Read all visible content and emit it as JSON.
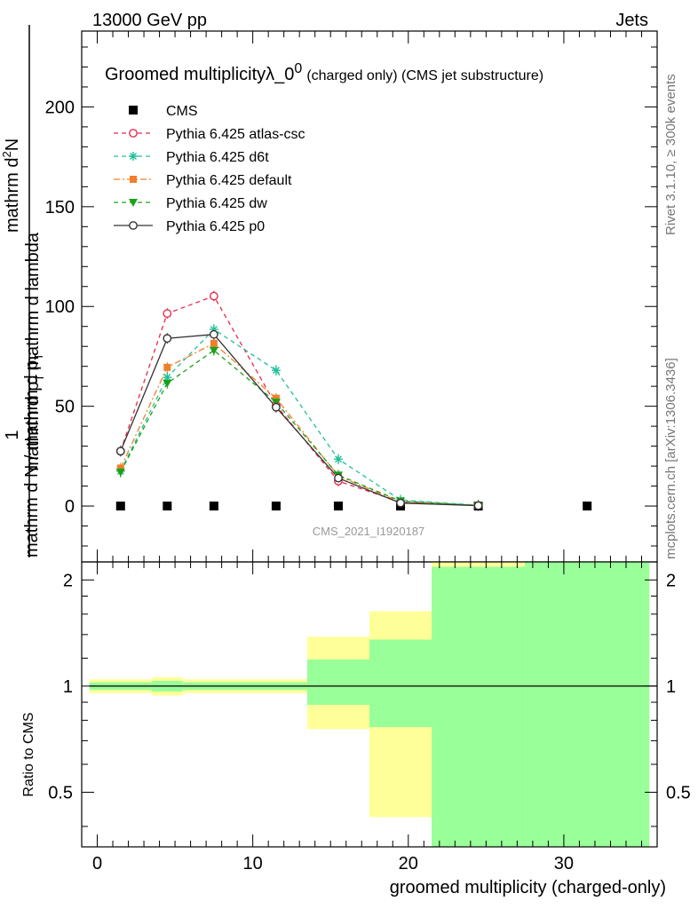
{
  "header": {
    "energy": "13000 GeV pp",
    "process": "Jets"
  },
  "side": {
    "rivet": "Rivet 3.1.10, ≥ 300k events",
    "mcplots": "mcplots.cern.ch [arXiv:1306.3436]"
  },
  "chart_data": [
    {
      "type": "line",
      "title": "Groomed multiplicityλ_0⁰",
      "title_main": "Groomed multiplicityλ_0",
      "title_sup": "0",
      "title_tail": "(charged only) (CMS jet substructure)",
      "ylabel_numerator": "mathrm d²N",
      "ylabel_numerator_main": "mathrm d",
      "ylabel_numerator_sup": "2",
      "ylabel_numerator_tail": "N",
      "ylabel_one": "1",
      "ylabel_denominator_main": "mathrm d p",
      "ylabel_denominator_sub": "T",
      "ylabel_denominator_tail": "mathrm d lambda",
      "ylabel_bottom": "mathrm d N / mathrm d p",
      "ylabel_bottom_sub": "T",
      "xlim": [
        -1,
        36
      ],
      "ylim": [
        -28,
        238
      ],
      "yticks": [
        0,
        50,
        100,
        150,
        200
      ],
      "xticks": [
        0,
        10,
        20,
        30
      ],
      "watermark": "CMS_2021_I1920187",
      "legend_position": "top-left",
      "series": [
        {
          "name": "CMS",
          "color": "#000000",
          "marker": "square",
          "x": [
            1.5,
            4.5,
            7.5,
            11.5,
            15.5,
            19.5,
            24.5,
            31.5
          ],
          "y": [
            0,
            0,
            0,
            0,
            0,
            0,
            0,
            0
          ]
        },
        {
          "name": "Pythia 6.425 atlas-csc",
          "color": "#e8294a",
          "marker": "open-circle",
          "dash": "5,4",
          "x": [
            1.5,
            4.5,
            7.5,
            11.5,
            15.5,
            19.5,
            24.5
          ],
          "y": [
            27.5,
            96.5,
            105.2,
            50.5,
            12.5,
            2.0,
            0.3
          ]
        },
        {
          "name": "Pythia 6.425 d6t",
          "color": "#20c09a",
          "marker": "star",
          "dash": "5,4",
          "x": [
            1.5,
            4.5,
            7.5,
            11.5,
            15.5,
            19.5,
            24.5
          ],
          "y": [
            17.5,
            64.5,
            88.5,
            68.0,
            23.5,
            3.0,
            0.4
          ]
        },
        {
          "name": "Pythia 6.425 default",
          "color": "#f07f2a",
          "marker": "filled-square",
          "dash": "7,3,2,3",
          "x": [
            1.5,
            4.5,
            7.5,
            11.5,
            15.5,
            19.5,
            24.5
          ],
          "y": [
            19.0,
            69.5,
            81.5,
            54.0,
            15.0,
            2.0,
            0.3
          ]
        },
        {
          "name": "Pythia 6.425 dw",
          "color": "#1aa01a",
          "marker": "down-triangle",
          "dash": "5,4",
          "x": [
            1.5,
            4.5,
            7.5,
            11.5,
            15.5,
            19.5,
            24.5
          ],
          "y": [
            17.0,
            61.5,
            78.0,
            52.0,
            15.5,
            2.5,
            0.3
          ]
        },
        {
          "name": "Pythia 6.425 p0",
          "color": "#333333",
          "marker": "open-circle",
          "dash": "",
          "x": [
            1.5,
            4.5,
            7.5,
            11.5,
            15.5,
            19.5,
            24.5
          ],
          "y": [
            27.5,
            84.0,
            86.0,
            49.5,
            14.0,
            1.5,
            0.2
          ]
        }
      ]
    },
    {
      "type": "area",
      "ylabel": "Ratio to CMS",
      "xlabel": "groomed multiplicity (charged-only)",
      "xlim": [
        -1,
        36
      ],
      "ylim": [
        0.35,
        2.25
      ],
      "yticks": [
        0.5,
        1,
        2
      ],
      "ytick_labels": [
        "0.5",
        "1",
        "2"
      ],
      "xticks": [
        0,
        10,
        20,
        30
      ],
      "reference_line": 1,
      "bands": [
        {
          "x0": -0.5,
          "x1": 3.5,
          "y_lo": 0.955,
          "y_hi": 1.045,
          "inner_lo": 0.975,
          "inner_hi": 1.025
        },
        {
          "x0": 3.5,
          "x1": 5.5,
          "y_lo": 0.94,
          "y_hi": 1.06,
          "inner_lo": 0.965,
          "inner_hi": 1.035
        },
        {
          "x0": 5.5,
          "x1": 13.5,
          "y_lo": 0.955,
          "y_hi": 1.045,
          "inner_lo": 0.975,
          "inner_hi": 1.025
        },
        {
          "x0": 13.5,
          "x1": 17.5,
          "y_lo": 0.755,
          "y_hi": 1.38,
          "inner_lo": 0.885,
          "inner_hi": 1.19
        },
        {
          "x0": 17.5,
          "x1": 21.5,
          "y_lo": 0.425,
          "y_hi": 1.63,
          "inner_lo": 0.765,
          "inner_hi": 1.355
        },
        {
          "x0": 21.5,
          "x1": 27.5,
          "y_lo": 0.35,
          "y_hi": 2.25,
          "inner_lo": 0.35,
          "inner_hi": 2.18
        },
        {
          "x0": 27.5,
          "x1": 35.5,
          "y_lo": 0.35,
          "y_hi": 2.25,
          "inner_lo": 0.35,
          "inner_hi": 2.25
        }
      ],
      "band_colors": {
        "outer": "#ffff99",
        "inner": "#99ff99"
      }
    }
  ]
}
